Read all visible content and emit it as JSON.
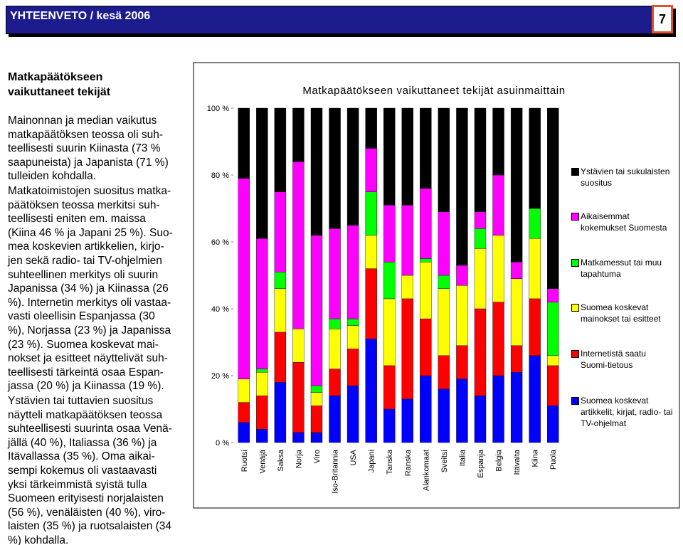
{
  "header": {
    "title": "YHTEENVETO / kesä 2006",
    "page_number": "7"
  },
  "sidebar": {
    "title": "Matkapäätökseen vaikuttaneet tekijät",
    "paragraphs": [
      [
        "Mainonnan ja median vaikutus",
        "matkapäätöksen teossa oli suh-",
        "teellisesti suurin Kiinasta (73 %",
        "saapuneista) ja Japanista (71 %)",
        "tulleiden kohdalla."
      ],
      [
        "Matkatoimistojen suositus matka-",
        "päätöksen teossa merkitsi suh-",
        "teellisesti eniten em. maissa",
        "(Kiina 46 % ja Japani 25 %). Suo-",
        "mea koskevien artikkelien, kirjo-",
        "jen sekä radio- tai TV-ohjelmien",
        "suhteellinen merkitys oli suurin",
        "Japanissa (34 %) ja Kiinassa (26",
        "%). Internetin merkitys oli vastaa-",
        "vasti oleellisin Espanjassa (30",
        "%), Norjassa (23 %) ja Japanissa",
        "(23 %). Suomea koskevat mai-",
        "nokset ja esitteet näyttelivät suh-",
        "teellisesti tärkeintä osaa Espan-",
        "jassa (20 %) ja Kiinassa (19 %)."
      ],
      [
        "Ystävien tai tuttavien suositus",
        "näytteli matkapäätöksen teossa",
        "suhteellisesti suurinta osaa Venä-",
        "jällä (40 %), Italiassa (36 %) ja",
        "Itävallassa (35 %). Oma aikai-",
        "sempi kokemus oli vastaavasti",
        "yksi tärkeimmistä syistä tulla",
        "Suomeen erityisesti norjalaisten",
        "(56 %), venäläisten (40 %), viro-",
        "laisten (35 %) ja ruotsalaisten (34",
        "%) kohdalla."
      ]
    ]
  },
  "chart_data": {
    "type": "bar",
    "stacked": true,
    "title": "Matkapäätökseen vaikuttaneet tekijät asuinmaittain",
    "categories": [
      "Ruotsi",
      "Venäjä",
      "Saksa",
      "Norja",
      "Viro",
      "Iso-Britannia",
      "USA",
      "Japani",
      "Tanska",
      "Ranska",
      "Alankomaat",
      "Sveitsi",
      "Italia",
      "Espanja",
      "Belgia",
      "Itävalta",
      "Kiina",
      "Puola"
    ],
    "series": [
      {
        "name": "Suomea koskevat artikkelit, kirjat, radio- tai TV-ohjelmat",
        "color": "#0000ff",
        "values": [
          6,
          4,
          18,
          3,
          3,
          14,
          17,
          31,
          10,
          13,
          20,
          16,
          19,
          14,
          20,
          21,
          26,
          11
        ]
      },
      {
        "name": "Internetistä saatu Suomi-tietous",
        "color": "#ff0000",
        "values": [
          6,
          10,
          15,
          21,
          8,
          8,
          11,
          21,
          13,
          30,
          17,
          10,
          10,
          26,
          22,
          8,
          17,
          12
        ]
      },
      {
        "name": "Suomea koskevat mainokset tai esitteet",
        "color": "#ffff00",
        "values": [
          7,
          7,
          13,
          10,
          4,
          12,
          7,
          10,
          20,
          7,
          17,
          20,
          18,
          18,
          20,
          20,
          18,
          3
        ]
      },
      {
        "name": "Matkamessut tai muu tapahtuma",
        "color": "#00ff00",
        "values": [
          0,
          1,
          5,
          0,
          2,
          3,
          2,
          13,
          11,
          0,
          1,
          4,
          0,
          6,
          0,
          0,
          9,
          16
        ]
      },
      {
        "name": "Aikaisemmat kokemukset Suomesta",
        "color": "#ff00ff",
        "values": [
          60,
          39,
          24,
          50,
          45,
          27,
          28,
          13,
          17,
          21,
          21,
          19,
          6,
          5,
          18,
          5,
          0,
          4
        ]
      },
      {
        "name": "Ystävien tai sukulaisten suositus",
        "color": "#000000",
        "values": [
          21,
          39,
          25,
          16,
          38,
          36,
          35,
          12,
          29,
          29,
          24,
          31,
          47,
          31,
          20,
          46,
          30,
          54
        ]
      }
    ],
    "ylim": [
      0,
      100
    ],
    "yticks": [
      {
        "value": 0,
        "label": "0 %"
      },
      {
        "value": 20,
        "label": "20 %"
      },
      {
        "value": 40,
        "label": "40 %"
      },
      {
        "value": 60,
        "label": "60 %"
      },
      {
        "value": 80,
        "label": "80 %"
      },
      {
        "value": 100,
        "label": "100 %"
      }
    ],
    "legend": "right",
    "legend_order": "reverse"
  }
}
